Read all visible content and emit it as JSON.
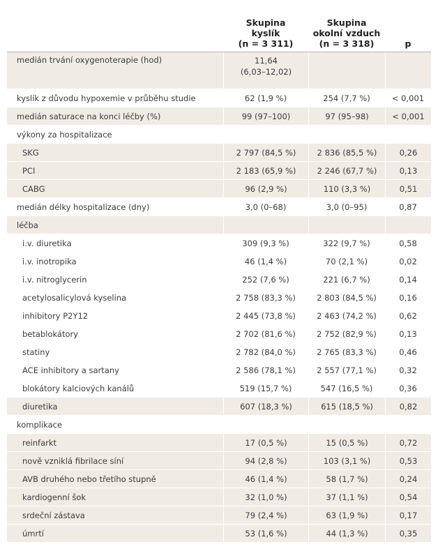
{
  "header": {
    "col2_line1": "Skupina",
    "col2_line2": "kyslík",
    "col2_line3": "(n = 3 311)",
    "col3_line1": "Skupina",
    "col3_line2": "okolní vzduch",
    "col3_line3": "(n = 3 318)",
    "col4": "p"
  },
  "rows": [
    {
      "label": "medián trvání oxygenoterapie (hod)",
      "v1": "11,64",
      "v1b": "(6,03–12,02)",
      "v2": "",
      "p": ""
    },
    {
      "label": "kyslík z důvodu hypoxemie v průběhu studie",
      "v1": "62 (1,9 %)",
      "v2": "254 (7,7 %)",
      "p": "< 0,001"
    },
    {
      "label": "medián saturace na konci léčby (%)",
      "v1": "99 (97–100)",
      "v2": "97 (95–98)",
      "p": "< 0,001"
    },
    {
      "label": "výkony za hospitalizace",
      "v1": "",
      "v2": "",
      "p": ""
    },
    {
      "label": "SKG",
      "v1": "2 797 (84,5 %)",
      "v2": "2 836 (85,5 %)",
      "p": "0,26"
    },
    {
      "label": "PCI",
      "v1": "2 183 (65,9 %)",
      "v2": "2 246 (67,7 %)",
      "p": "0,13"
    },
    {
      "label": "CABG",
      "v1": "96 (2,9 %)",
      "v2": "110 (3,3 %)",
      "p": "0,51"
    },
    {
      "label": "medián délky hospitalizace (dny)",
      "v1": "3,0 (0–68)",
      "v2": "3,0 (0–95)",
      "p": "0,87"
    },
    {
      "label": "léčba",
      "v1": "",
      "v2": "",
      "p": ""
    },
    {
      "label": "i.v. diuretika",
      "v1": "309 (9,3 %)",
      "v2": "322 (9,7 %)",
      "p": "0,58"
    },
    {
      "label": "i.v. inotropika",
      "v1": "46 (1,4 %)",
      "v2": "70 (2,1 %)",
      "p": "0,02"
    },
    {
      "label": "i.v. nitroglycerin",
      "v1": "252 (7,6 %)",
      "v2": "221 (6,7 %)",
      "p": "0,14"
    },
    {
      "label": "acetylosalicylová kyselina",
      "v1": "2 758 (83,3 %)",
      "v2": "2 803 (84,5 %)",
      "p": "0,16"
    },
    {
      "label": "inhibitory P2Y12",
      "v1": "2 445 (73,8 %)",
      "v2": "2 463 (74,2 %)",
      "p": "0,62"
    },
    {
      "label": "betablokátory",
      "v1": "2 702 (81,6 %)",
      "v2": "2 752 (82,9 %)",
      "p": "0,13"
    },
    {
      "label": "statiny",
      "v1": "2 782 (84,0 %)",
      "v2": "2 765 (83,3 %)",
      "p": "0,46"
    },
    {
      "label": "ACE inhibitory a sartany",
      "v1": "2 586 (78,1 %)",
      "v2": "2 557 (77,1 %)",
      "p": "0,32"
    },
    {
      "label": "blokátory kalciových kanálů",
      "v1": "519 (15,7 %)",
      "v2": "547 (16,5 %)",
      "p": "0,36"
    },
    {
      "label": "diuretika",
      "v1": "607 (18,3 %)",
      "v2": "615 (18,5 %)",
      "p": "0,82"
    },
    {
      "label": "komplikace",
      "v1": "",
      "v2": "",
      "p": ""
    },
    {
      "label": "reinfarkt",
      "v1": "17 (0,5 %)",
      "v2": "15 (0,5 %)",
      "p": "0,72"
    },
    {
      "label": "nově vzniklá fibrilace síní",
      "v1": "94 (2,8 %)",
      "v2": "103 (3,1 %)",
      "p": "0,53"
    },
    {
      "label": "AVB druhého nebo třetího stupně",
      "v1": "46 (1,4 %)",
      "v2": "58 (1,7 %)",
      "p": "0,24"
    },
    {
      "label": "kardiogenní šok",
      "v1": "32 (1,0 %)",
      "v2": "37 (1,1 %)",
      "p": "0,54"
    },
    {
      "label": "srdeční zástava",
      "v1": "79 (2,4 %)",
      "v2": "63 (1,9 %)",
      "p": "0,17"
    },
    {
      "label": "úmrtí",
      "v1": "53 (1,6 %)",
      "v2": "44 (1,3 %)",
      "p": "0,35"
    }
  ]
}
